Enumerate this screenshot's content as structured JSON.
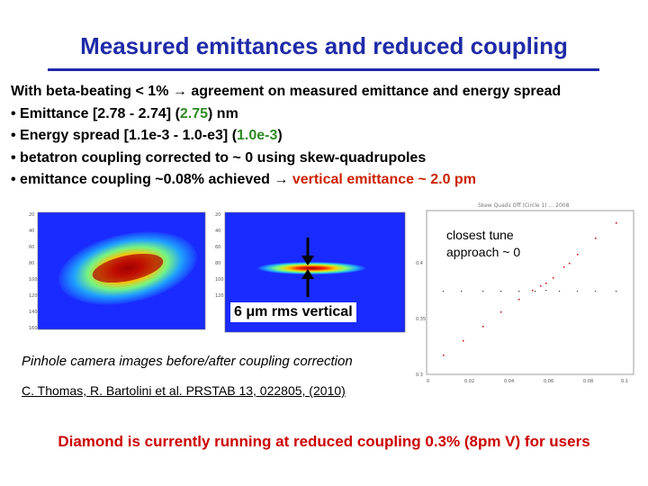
{
  "slide": {
    "title": "Measured emittances and reduced coupling",
    "intro": "With beta-beating < 1% → agreement on measured emittance and energy spread",
    "bullets": [
      {
        "pre": "• Emittance [2.78 - 2.74] (",
        "hl": "2.75",
        "post": ") nm"
      },
      {
        "pre": "• Energy spread [1.1e-3 - 1.0-e3] (",
        "hl": "1.0e-3",
        "post": ")"
      },
      {
        "pre": "• betatron coupling corrected to ~ 0 using skew-quadrupoles",
        "hl": "",
        "post": ""
      },
      {
        "pre": "• emittance coupling ~0.08% achieved → ",
        "hl": "vertical emittance ~ 2.0 pm",
        "post": ""
      }
    ],
    "colors": {
      "title": "#1f2aa8",
      "highlight_green": "#2e8b24",
      "highlight_red": "#cc2200",
      "bottom": "#cc0000"
    }
  },
  "figure": {
    "overlay_label": "6 μm rms vertical",
    "caption": "Pinhole camera images before/after coupling correction",
    "reference": "C. Thomas, R. Bartolini et al. PRSTAB 13, 022805, (2010)",
    "tune_note": [
      "closest tune",
      "approach ~ 0"
    ],
    "plot_title": "Skew Quads Off (Circle 1) ... 2008",
    "plot_x_ticks": [
      "0",
      "0.02",
      "0.04",
      "0.06",
      "0.08",
      "0.1"
    ],
    "plot_y_ticks": [
      "0.3",
      "0.35",
      "0.4"
    ]
  },
  "footer": "Diamond is currently running at reduced coupling 0.3% (8pm V) for users"
}
